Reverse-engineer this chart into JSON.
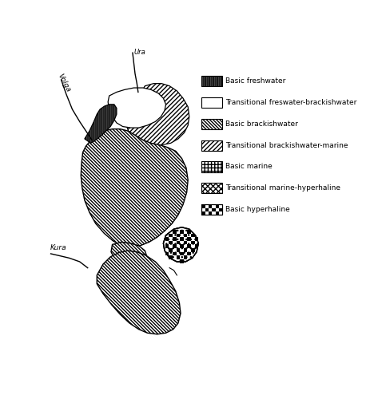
{
  "fig_width": 4.68,
  "fig_height": 5.0,
  "dpi": 100,
  "legend_items": [
    {
      "label": "Basic freshwater",
      "hatch": "||||||",
      "fc": "white"
    },
    {
      "label": "Transitional freswater-brackishwater",
      "hatch": "======",
      "fc": "white"
    },
    {
      "label": "Basic brackishwater",
      "hatch": "\\\\\\\\\\\\",
      "fc": "white"
    },
    {
      "label": "Transitional brackishwater-marine",
      "hatch": "//////",
      "fc": "white"
    },
    {
      "label": "Basic marine",
      "hatch": "+++++",
      "fc": "white"
    },
    {
      "label": "Transitional marine-hyperhaline",
      "hatch": "xxxxx",
      "fc": "white"
    },
    {
      "label": "Basic hyperhaline",
      "hatch": "checkerboard",
      "fc": "white"
    }
  ],
  "rivers": [
    {
      "name": "Volga",
      "x": [
        22,
        30,
        40,
        52,
        62,
        72
      ],
      "y": [
        55,
        75,
        100,
        118,
        132,
        148
      ],
      "rot": -55
    },
    {
      "name": "Ura",
      "x": [
        138,
        140,
        143,
        146
      ],
      "y": [
        8,
        25,
        45,
        68
      ],
      "rot": 0
    },
    {
      "name": "Kura",
      "x": [
        5,
        22,
        42,
        60,
        72
      ],
      "y": [
        332,
        335,
        340,
        348,
        360
      ],
      "rot": 0
    }
  ]
}
